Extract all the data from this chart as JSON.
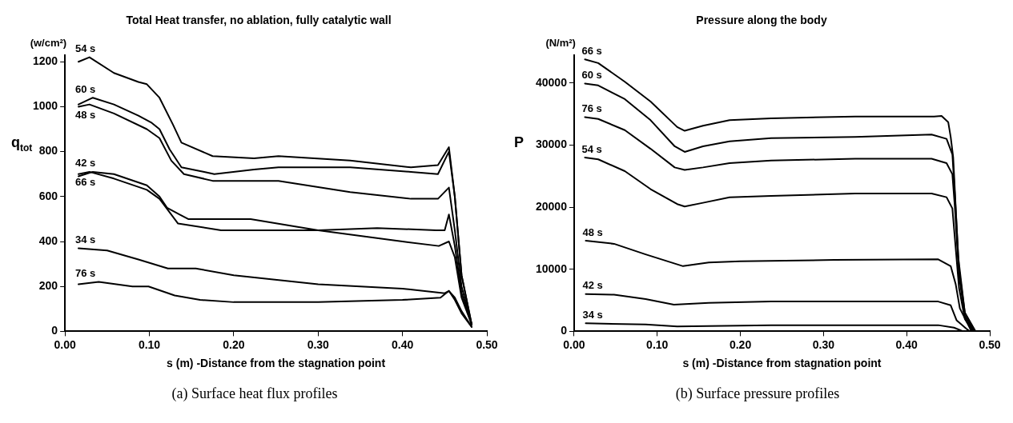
{
  "chart_data": [
    {
      "type": "line",
      "title": "Total Heat transfer, no ablation, fully catalytic wall",
      "xlabel": "s (m) -Distance from the stagnation point",
      "ylabel": "q$_{tot}$",
      "annotations": [
        "(w/cm²)",
        "(a) Surface heat flux profiles"
      ],
      "marker": "none",
      "xlim": [
        0,
        0.5
      ],
      "xticks": [
        {
          "value": 0,
          "label": "0.00"
        },
        {
          "value": 0.1,
          "label": "0.10"
        },
        {
          "value": 0.2,
          "label": "0.20"
        },
        {
          "value": 0.3,
          "label": "0.30"
        },
        {
          "value": 0.4,
          "label": "0.40"
        },
        {
          "value": 0.5,
          "label": "0.50"
        }
      ],
      "ylim": [
        0,
        1230
      ],
      "yticks": [
        0,
        200,
        400,
        600,
        800,
        1000,
        1200
      ],
      "series": [
        {
          "name": "54 s",
          "color": "#000000",
          "x": [
            0.016,
            0.029,
            0.058,
            0.087,
            0.097,
            0.112,
            0.128,
            0.138,
            0.175,
            0.224,
            0.253,
            0.338,
            0.41,
            0.442,
            0.455,
            0.462,
            0.47,
            0.482
          ],
          "values": [
            1200,
            1220,
            1150,
            1110,
            1100,
            1040,
            920,
            840,
            780,
            770,
            780,
            760,
            730,
            740,
            820,
            600,
            250,
            30
          ]
        },
        {
          "name": "60 s",
          "color": "#000000",
          "x": [
            0.016,
            0.033,
            0.058,
            0.087,
            0.102,
            0.112,
            0.124,
            0.138,
            0.165,
            0.177,
            0.224,
            0.253,
            0.338,
            0.41,
            0.442,
            0.455,
            0.462,
            0.47,
            0.482
          ],
          "values": [
            1010,
            1040,
            1010,
            960,
            930,
            900,
            810,
            730,
            710,
            700,
            720,
            730,
            730,
            710,
            700,
            800,
            600,
            250,
            30
          ]
        },
        {
          "name": "48 s",
          "color": "#000000",
          "x": [
            0.016,
            0.029,
            0.058,
            0.097,
            0.112,
            0.126,
            0.141,
            0.175,
            0.224,
            0.253,
            0.338,
            0.41,
            0.442,
            0.455,
            0.462,
            0.47,
            0.482
          ],
          "values": [
            1000,
            1010,
            970,
            900,
            860,
            760,
            700,
            670,
            670,
            670,
            620,
            590,
            590,
            640,
            450,
            200,
            30
          ]
        },
        {
          "name": "42 s",
          "color": "#000000",
          "x": [
            0.016,
            0.033,
            0.058,
            0.097,
            0.112,
            0.121,
            0.136,
            0.146,
            0.2,
            0.22,
            0.3,
            0.4,
            0.443,
            0.455,
            0.462,
            0.47,
            0.482
          ],
          "values": [
            690,
            710,
            700,
            650,
            600,
            550,
            520,
            500,
            500,
            500,
            450,
            400,
            380,
            400,
            330,
            150,
            30
          ]
        },
        {
          "name": "66 s",
          "color": "#000000",
          "x": [
            0.016,
            0.029,
            0.058,
            0.097,
            0.112,
            0.134,
            0.185,
            0.3,
            0.37,
            0.44,
            0.45,
            0.455,
            0.462,
            0.47,
            0.482
          ],
          "values": [
            700,
            710,
            680,
            630,
            590,
            480,
            450,
            450,
            460,
            450,
            450,
            520,
            380,
            170,
            30
          ]
        },
        {
          "name": "34 s",
          "color": "#000000",
          "x": [
            0.016,
            0.05,
            0.087,
            0.122,
            0.135,
            0.155,
            0.2,
            0.3,
            0.4,
            0.45,
            0.455,
            0.462,
            0.47,
            0.482
          ],
          "values": [
            370,
            360,
            320,
            280,
            280,
            280,
            250,
            210,
            190,
            170,
            180,
            140,
            80,
            20
          ]
        },
        {
          "name": "76 s",
          "color": "#000000",
          "x": [
            0.016,
            0.04,
            0.08,
            0.099,
            0.13,
            0.16,
            0.2,
            0.3,
            0.4,
            0.445,
            0.455,
            0.462,
            0.47,
            0.482
          ],
          "values": [
            210,
            220,
            200,
            200,
            160,
            140,
            130,
            130,
            140,
            150,
            180,
            150,
            90,
            20
          ]
        }
      ]
    },
    {
      "type": "line",
      "title": "Pressure along the body",
      "xlabel": "s (m) -Distance from stagnation point",
      "ylabel": "P",
      "annotations": [
        "(N/m²)",
        "(b) Surface pressure profiles"
      ],
      "marker": "none",
      "xlim": [
        0,
        0.5
      ],
      "xticks": [
        {
          "value": 0,
          "label": "0.00"
        },
        {
          "value": 0.1,
          "label": "0.10"
        },
        {
          "value": 0.2,
          "label": "0.20"
        },
        {
          "value": 0.3,
          "label": "0.30"
        },
        {
          "value": 0.4,
          "label": "0.40"
        },
        {
          "value": 0.5,
          "label": "0.50"
        }
      ],
      "ylim": [
        0,
        44500
      ],
      "yticks": [
        0,
        10000,
        20000,
        30000,
        40000
      ],
      "series": [
        {
          "name": "66 s",
          "color": "#000000",
          "x": [
            0.013,
            0.029,
            0.061,
            0.092,
            0.124,
            0.133,
            0.155,
            0.187,
            0.237,
            0.338,
            0.433,
            0.442,
            0.45,
            0.453,
            0.456,
            0.462,
            0.47,
            0.483
          ],
          "values": [
            43800,
            43200,
            40200,
            37000,
            32900,
            32300,
            33100,
            34000,
            34300,
            34600,
            34600,
            34700,
            33700,
            31300,
            28000,
            12000,
            3000,
            0
          ]
        },
        {
          "name": "60 s",
          "color": "#000000",
          "x": [
            0.013,
            0.029,
            0.061,
            0.092,
            0.121,
            0.133,
            0.155,
            0.187,
            0.237,
            0.338,
            0.43,
            0.448,
            0.455,
            0.458,
            0.463,
            0.47,
            0.482
          ],
          "values": [
            39900,
            39600,
            37400,
            34000,
            29800,
            28900,
            29800,
            30600,
            31100,
            31300,
            31700,
            31000,
            28500,
            22000,
            10000,
            3000,
            0
          ]
        },
        {
          "name": "76 s",
          "color": "#000000",
          "x": [
            0.013,
            0.029,
            0.061,
            0.092,
            0.121,
            0.133,
            0.155,
            0.187,
            0.237,
            0.338,
            0.43,
            0.448,
            0.455,
            0.458,
            0.463,
            0.47,
            0.481
          ],
          "values": [
            34500,
            34200,
            32400,
            29400,
            26400,
            26000,
            26400,
            27100,
            27500,
            27800,
            27800,
            27100,
            25300,
            20000,
            9000,
            2500,
            0
          ]
        },
        {
          "name": "54 s",
          "color": "#000000",
          "x": [
            0.013,
            0.029,
            0.061,
            0.092,
            0.124,
            0.133,
            0.155,
            0.187,
            0.237,
            0.338,
            0.43,
            0.448,
            0.455,
            0.458,
            0.463,
            0.47,
            0.48
          ],
          "values": [
            28000,
            27700,
            25800,
            22900,
            20500,
            20100,
            20700,
            21600,
            21800,
            22200,
            22200,
            21600,
            19800,
            15000,
            7000,
            2000,
            0
          ]
        },
        {
          "name": "48 s",
          "color": "#000000",
          "x": [
            0.014,
            0.048,
            0.086,
            0.131,
            0.162,
            0.2,
            0.313,
            0.438,
            0.453,
            0.459,
            0.464,
            0.478
          ],
          "values": [
            14600,
            14100,
            12400,
            10500,
            11100,
            11300,
            11500,
            11600,
            10500,
            7600,
            3700,
            0
          ]
        },
        {
          "name": "42 s",
          "color": "#000000",
          "x": [
            0.014,
            0.048,
            0.086,
            0.12,
            0.162,
            0.237,
            0.438,
            0.453,
            0.46,
            0.472,
            0.476
          ],
          "values": [
            6000,
            5900,
            5200,
            4300,
            4600,
            4800,
            4800,
            4200,
            1800,
            400,
            0
          ]
        },
        {
          "name": "34 s",
          "color": "#000000",
          "x": [
            0.014,
            0.086,
            0.124,
            0.237,
            0.438,
            0.457,
            0.468
          ],
          "values": [
            1300,
            1100,
            800,
            1000,
            1000,
            600,
            0
          ]
        }
      ]
    }
  ]
}
